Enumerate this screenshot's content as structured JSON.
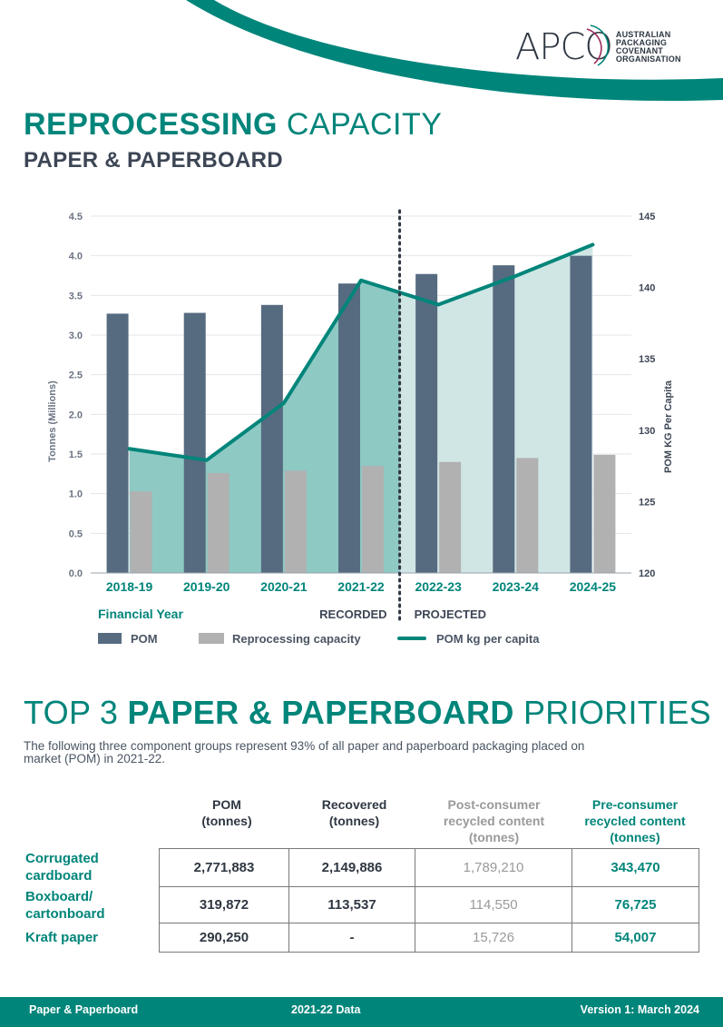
{
  "header": {
    "logo_text": "APCO",
    "logo_org": [
      "AUSTRALIAN",
      "PACKAGING",
      "COVENANT",
      "ORGANISATION"
    ],
    "title_bold": "REPROCESSING",
    "title_rest": " CAPACITY",
    "subtitle": "PAPER & PAPERBOARD"
  },
  "colors": {
    "teal": "#00857a",
    "pom_bar": "#566b80",
    "reprocessing_bar": "#b1b1b1",
    "recorded_area": "#8ec9c4",
    "projected_area": "#cfe6e5"
  },
  "chart_data": {
    "type": "bar",
    "categories": [
      "2018-19",
      "2019-20",
      "2020-21",
      "2021-22",
      "2022-23",
      "2023-24",
      "2024-25"
    ],
    "series": [
      {
        "name": "POM",
        "type": "bar",
        "axis": "left",
        "values": [
          3.27,
          3.28,
          3.38,
          3.65,
          3.77,
          3.88,
          4.0
        ]
      },
      {
        "name": "Reprocessing capacity",
        "type": "bar",
        "axis": "left",
        "values": [
          1.03,
          1.26,
          1.29,
          1.35,
          1.4,
          1.45,
          1.49
        ]
      },
      {
        "name": "POM kg per capita",
        "type": "line",
        "axis": "right",
        "values": [
          128.7,
          127.9,
          131.9,
          140.5,
          138.8,
          140.8,
          143.0
        ]
      }
    ],
    "ylabel": "Tonnes (Millions)",
    "y2label": "POM KG Per Capita",
    "xlabel": "Financial Year",
    "ylim": [
      0,
      4.5
    ],
    "yticks": [
      "0.0",
      "0.5",
      "1.0",
      "1.5",
      "2.0",
      "2.5",
      "3.0",
      "3.5",
      "4.0",
      "4.5"
    ],
    "y2lim": [
      120,
      145
    ],
    "y2ticks": [
      "120",
      "125",
      "130",
      "135",
      "140",
      "145"
    ],
    "divider_labels": {
      "left": "RECORDED",
      "right": "PROJECTED"
    },
    "grid": true
  },
  "legend": {
    "pom": "POM",
    "reprocessing": "Reprocessing capacity",
    "per_capita": "POM kg per capita"
  },
  "priorities": {
    "title_pre": "TOP 3 ",
    "title_bold": "PAPER & PAPERBOARD",
    "title_post": " PRIORITIES",
    "intro": "The following three component groups represent 93% of all paper and paperboard packaging placed on market (POM) in 2021-22.",
    "columns": [
      [
        "POM",
        "(tonnes)"
      ],
      [
        "Recovered",
        "(tonnes)"
      ],
      [
        "Post-consumer",
        "recycled content",
        "(tonnes)"
      ],
      [
        "Pre-consumer",
        "recycled content",
        "(tonnes)"
      ]
    ],
    "rows": [
      {
        "label": [
          "Corrugated",
          "cardboard"
        ],
        "values": [
          "2,771,883",
          "2,149,886",
          "1,789,210",
          "343,470"
        ]
      },
      {
        "label": [
          "Boxboard/",
          "cartonboard"
        ],
        "values": [
          "319,872",
          "113,537",
          "114,550",
          "76,725"
        ]
      },
      {
        "label": [
          "Kraft paper"
        ],
        "values": [
          "290,250",
          "-",
          "15,726",
          "54,007"
        ]
      }
    ]
  },
  "footer": {
    "left": "Paper & Paperboard",
    "center": "2021-22 Data",
    "right": "Version 1: March 2024"
  }
}
